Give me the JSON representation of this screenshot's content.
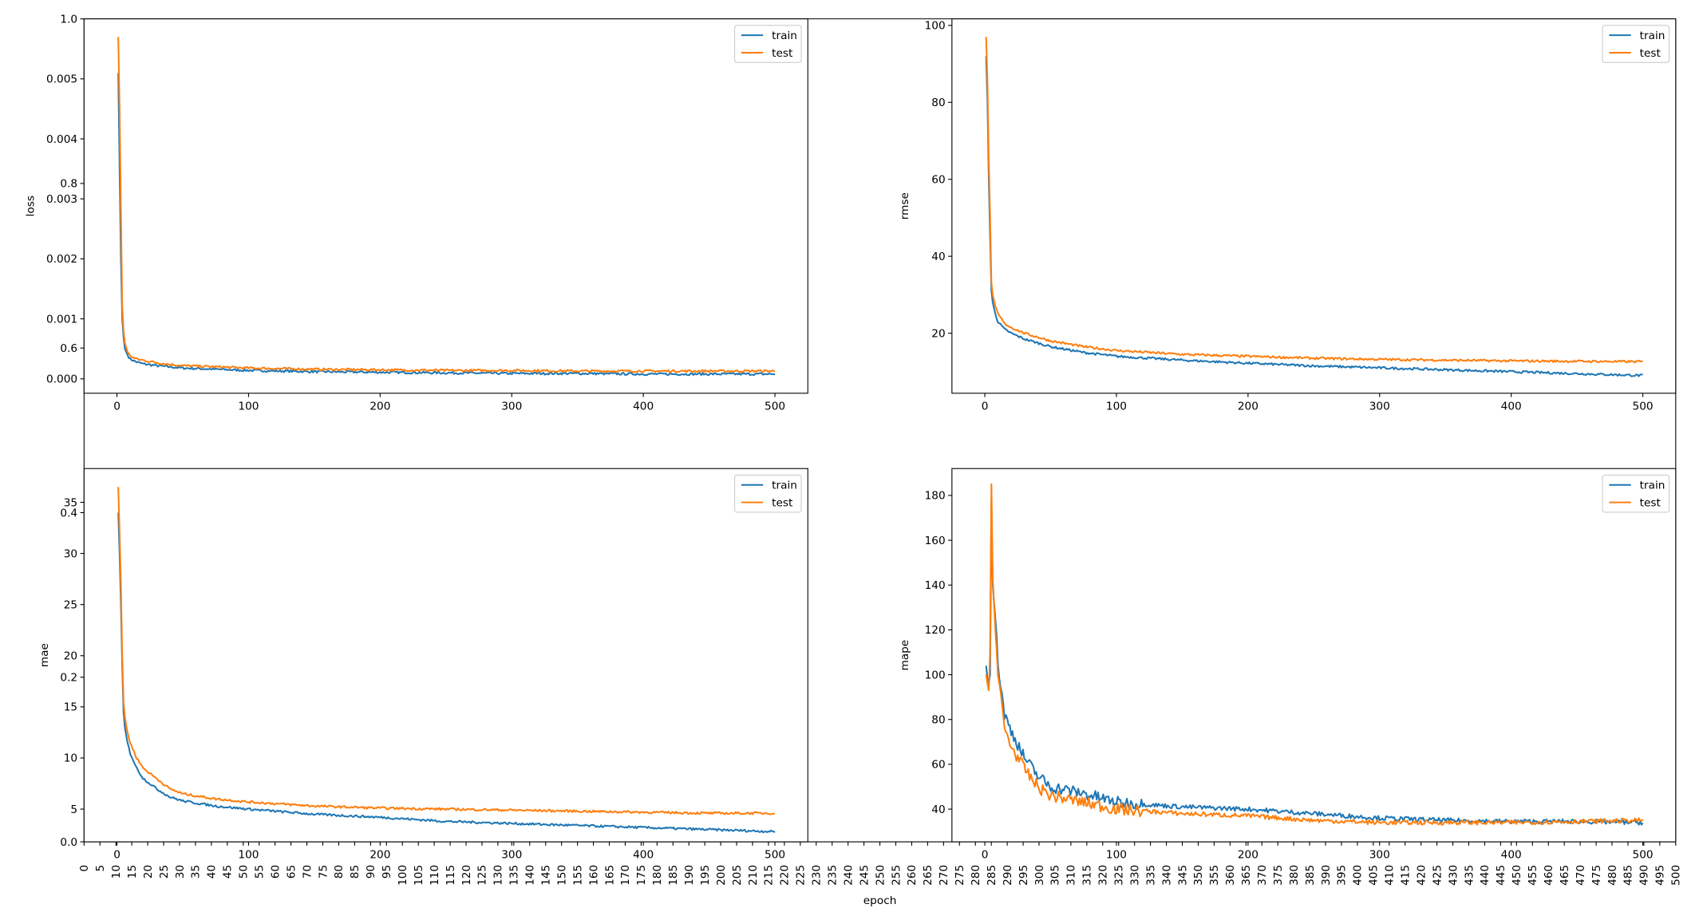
{
  "chart_data": [
    {
      "type": "line",
      "id": "loss",
      "ylabel": "loss",
      "xlabel": "",
      "xlim": [
        -25,
        525
      ],
      "ylim": [
        -0.00024,
        0.006
      ],
      "xticks": [
        0,
        100,
        200,
        300,
        400,
        500
      ],
      "yticks": [
        "0.000",
        "0.001",
        "0.002",
        "0.003",
        "0.004",
        "0.005"
      ],
      "legend": {
        "position": "top-right",
        "entries": [
          "train",
          "test"
        ]
      },
      "x": [
        1,
        2,
        3,
        4,
        5,
        6,
        8,
        10,
        15,
        20,
        30,
        40,
        50,
        75,
        100,
        150,
        200,
        250,
        300,
        350,
        400,
        450,
        500
      ],
      "series": [
        {
          "name": "train",
          "color": "#1f77b4",
          "values": [
            0.0051,
            0.0035,
            0.002,
            0.001,
            0.0007,
            0.0005,
            0.0004,
            0.00033,
            0.00028,
            0.00025,
            0.00022,
            0.0002,
            0.00018,
            0.00016,
            0.00014,
            0.00012,
            0.00011,
            0.0001,
            9e-05,
            9e-05,
            8e-05,
            8e-05,
            8e-05
          ]
        },
        {
          "name": "test",
          "color": "#ff7f0e",
          "values": [
            0.0057,
            0.0045,
            0.0028,
            0.0012,
            0.0008,
            0.0006,
            0.00045,
            0.00038,
            0.00033,
            0.00031,
            0.00027,
            0.00024,
            0.00022,
            0.0002,
            0.00018,
            0.00016,
            0.00015,
            0.00014,
            0.00014,
            0.00013,
            0.00013,
            0.00013,
            0.00013
          ]
        }
      ]
    },
    {
      "type": "line",
      "id": "rmse",
      "ylabel": "rmse",
      "xlabel": "",
      "xlim": [
        -25,
        525
      ],
      "ylim": [
        4.4,
        101.7
      ],
      "xticks": [
        0,
        100,
        200,
        300,
        400,
        500
      ],
      "yticks": [
        "20",
        "40",
        "60",
        "80",
        "100"
      ],
      "legend": {
        "position": "top-right",
        "entries": [
          "train",
          "test"
        ]
      },
      "x": [
        1,
        2,
        3,
        4,
        5,
        6,
        8,
        10,
        15,
        20,
        30,
        40,
        50,
        75,
        100,
        150,
        200,
        250,
        300,
        350,
        400,
        450,
        500
      ],
      "series": [
        {
          "name": "train",
          "color": "#1f77b4",
          "values": [
            92,
            80,
            60,
            45,
            31,
            28,
            25,
            23,
            21,
            20,
            18.5,
            17.5,
            16.5,
            15,
            14,
            13,
            12.2,
            11.5,
            11,
            10.5,
            10,
            9.5,
            9
          ]
        },
        {
          "name": "test",
          "color": "#ff7f0e",
          "values": [
            97,
            85,
            65,
            50,
            33,
            30,
            27,
            25,
            22.5,
            21.5,
            20,
            19,
            18,
            16.5,
            15.5,
            14.5,
            14,
            13.5,
            13.2,
            13,
            12.8,
            12.7,
            12.6
          ]
        }
      ]
    },
    {
      "type": "line",
      "id": "mae",
      "ylabel": "mae",
      "xlabel": "",
      "xlim": [
        -25,
        525
      ],
      "ylim": [
        1.8,
        38.3
      ],
      "xticks": [
        0,
        100,
        200,
        300,
        400,
        500
      ],
      "yticks": [
        "5",
        "10",
        "15",
        "20",
        "25",
        "30",
        "35"
      ],
      "legend": {
        "position": "top-right",
        "entries": [
          "train",
          "test"
        ]
      },
      "x": [
        1,
        2,
        3,
        4,
        5,
        6,
        8,
        10,
        15,
        20,
        30,
        40,
        50,
        75,
        100,
        150,
        200,
        250,
        300,
        350,
        400,
        450,
        500
      ],
      "series": [
        {
          "name": "train",
          "color": "#1f77b4",
          "values": [
            34,
            30,
            25,
            19,
            14.5,
            13,
            11.5,
            10.5,
            9,
            8,
            7,
            6.2,
            5.8,
            5.3,
            5,
            4.5,
            4.2,
            3.8,
            3.6,
            3.4,
            3.2,
            3,
            2.8
          ]
        },
        {
          "name": "test",
          "color": "#ff7f0e",
          "values": [
            36.5,
            32,
            27,
            20,
            15.5,
            14,
            12.5,
            11.5,
            10,
            9,
            8,
            7,
            6.5,
            6,
            5.7,
            5.3,
            5.1,
            5,
            4.9,
            4.8,
            4.7,
            4.6,
            4.6
          ]
        }
      ]
    },
    {
      "type": "line",
      "id": "mape",
      "ylabel": "mape",
      "xlabel": "",
      "xlim": [
        -25,
        525
      ],
      "ylim": [
        25.4,
        192
      ],
      "xticks": [
        0,
        100,
        200,
        300,
        400,
        500
      ],
      "yticks": [
        "40",
        "60",
        "80",
        "100",
        "120",
        "140",
        "160",
        "180"
      ],
      "legend": {
        "position": "top-right",
        "entries": [
          "train",
          "test"
        ]
      },
      "x": [
        1,
        2,
        3,
        4,
        5,
        6,
        8,
        10,
        15,
        20,
        30,
        40,
        50,
        75,
        100,
        150,
        200,
        250,
        300,
        350,
        400,
        450,
        500
      ],
      "series": [
        {
          "name": "train",
          "color": "#1f77b4",
          "values": [
            104,
            98,
            96,
            100,
            178,
            140,
            125,
            105,
            82,
            75,
            63,
            55,
            50,
            47,
            43,
            41,
            40,
            38,
            36,
            35,
            34.5,
            34.5,
            34
          ]
        },
        {
          "name": "test",
          "color": "#ff7f0e",
          "values": [
            100,
            96,
            93,
            110,
            185,
            143,
            120,
            100,
            76,
            68,
            58,
            50,
            46,
            43,
            40,
            38,
            37,
            35,
            34,
            34,
            34,
            34.5,
            35
          ]
        }
      ]
    },
    {
      "type": "line",
      "id": "background",
      "xlabel": "epoch",
      "ylabel": "",
      "xlim": [
        0,
        500
      ],
      "ylim": [
        0,
        1
      ],
      "xtick_step": 5,
      "yticks": [
        "0.0",
        "0.2",
        "0.4",
        "0.6",
        "0.8",
        "1.0"
      ]
    }
  ]
}
